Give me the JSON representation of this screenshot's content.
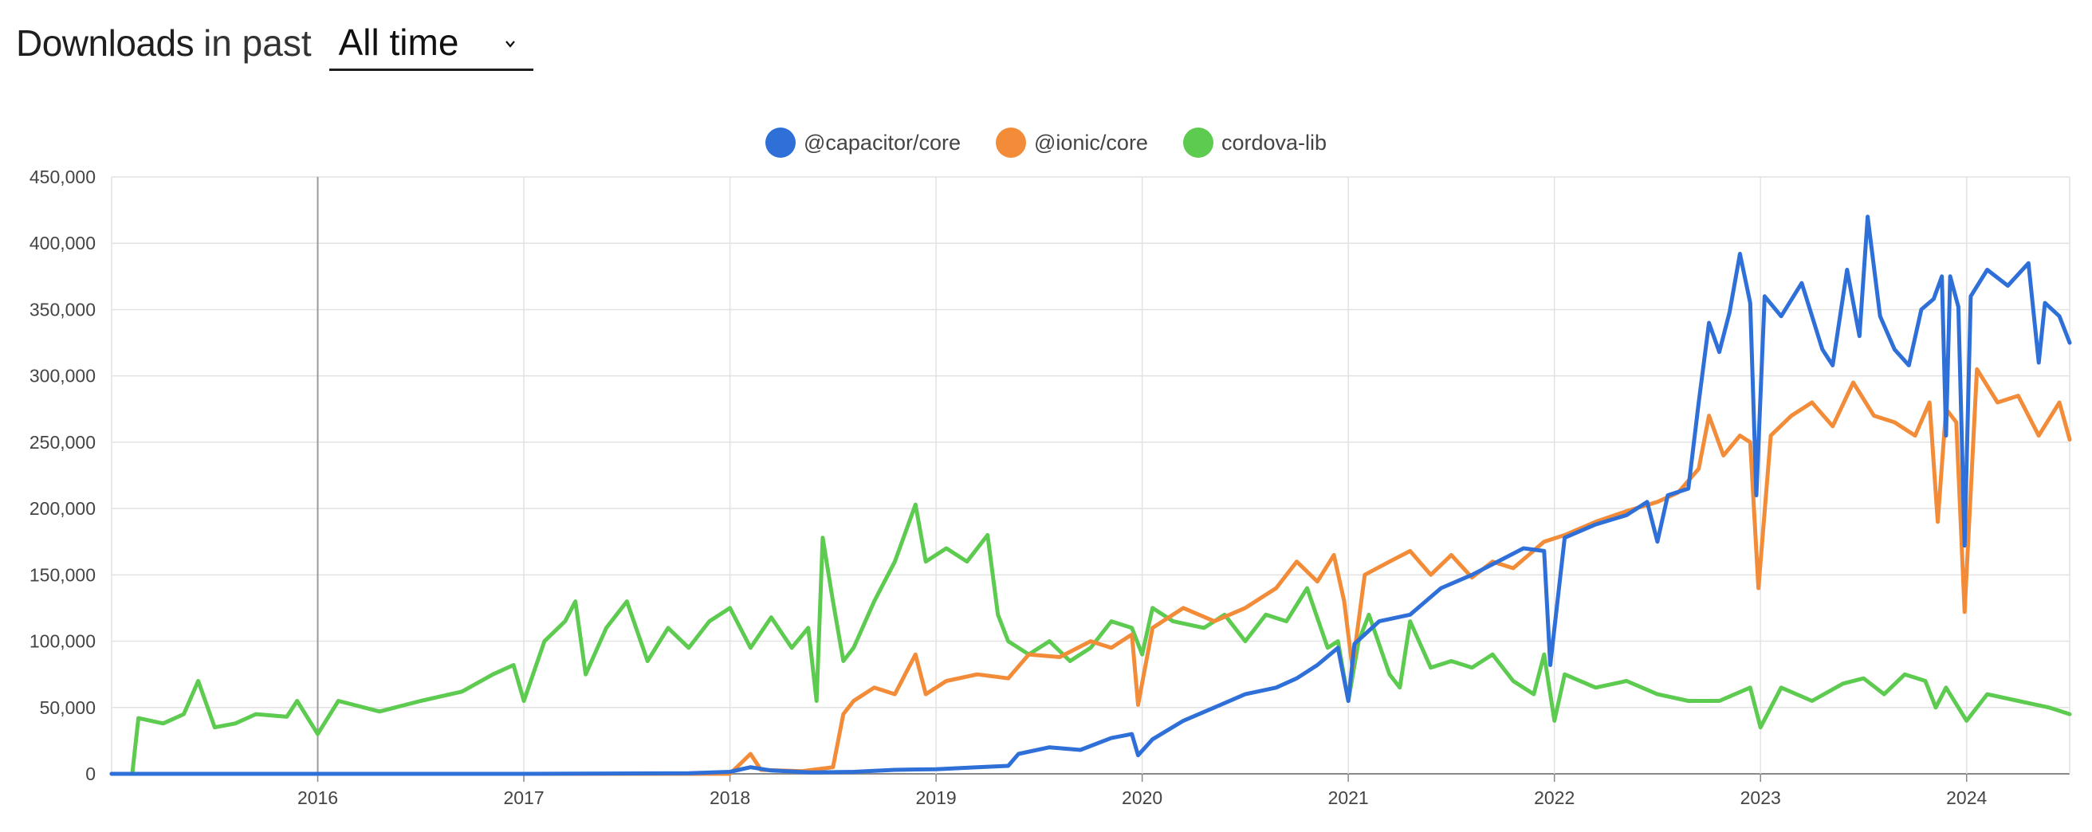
{
  "header": {
    "title_strong": "Downloads",
    "title_light": "in past",
    "range_select": {
      "value": "All time",
      "options": [
        "All time"
      ]
    }
  },
  "colors": {
    "capacitor": "#2f6fd8",
    "ionic": "#f28c38",
    "cordova": "#5ccb4f",
    "grid": "#e2e2e2",
    "axis": "#888888"
  },
  "chart_data": {
    "type": "line",
    "title": "",
    "xlabel": "",
    "ylabel": "",
    "legend_position": "top-center",
    "grid": true,
    "x_range": [
      2015.0,
      2024.5
    ],
    "ylim": [
      0,
      450000
    ],
    "y_ticks": [
      0,
      50000,
      100000,
      150000,
      200000,
      250000,
      300000,
      350000,
      400000,
      450000
    ],
    "y_tick_labels": [
      "0",
      "50,000",
      "100,000",
      "150,000",
      "200,000",
      "250,000",
      "300,000",
      "350,000",
      "400,000",
      "450,000"
    ],
    "x_ticks": [
      2016,
      2017,
      2018,
      2019,
      2020,
      2021,
      2022,
      2023,
      2024
    ],
    "x_tick_labels": [
      "2016",
      "2017",
      "2018",
      "2019",
      "2020",
      "2021",
      "2022",
      "2023",
      "2024"
    ],
    "series": [
      {
        "name": "@capacitor/core",
        "color_key": "capacitor",
        "points": [
          [
            2015.0,
            0
          ],
          [
            2016.0,
            0
          ],
          [
            2017.0,
            0
          ],
          [
            2017.8,
            500
          ],
          [
            2018.0,
            1500
          ],
          [
            2018.1,
            5000
          ],
          [
            2018.2,
            2500
          ],
          [
            2018.4,
            1000
          ],
          [
            2018.6,
            1500
          ],
          [
            2018.8,
            3000
          ],
          [
            2019.0,
            3500
          ],
          [
            2019.2,
            5000
          ],
          [
            2019.35,
            6000
          ],
          [
            2019.4,
            15000
          ],
          [
            2019.55,
            20000
          ],
          [
            2019.7,
            18000
          ],
          [
            2019.85,
            27000
          ],
          [
            2019.95,
            30000
          ],
          [
            2019.98,
            14000
          ],
          [
            2020.05,
            26000
          ],
          [
            2020.2,
            40000
          ],
          [
            2020.35,
            50000
          ],
          [
            2020.5,
            60000
          ],
          [
            2020.65,
            65000
          ],
          [
            2020.75,
            72000
          ],
          [
            2020.85,
            82000
          ],
          [
            2020.95,
            95000
          ],
          [
            2021.0,
            55000
          ],
          [
            2021.03,
            98000
          ],
          [
            2021.15,
            115000
          ],
          [
            2021.3,
            120000
          ],
          [
            2021.45,
            140000
          ],
          [
            2021.6,
            150000
          ],
          [
            2021.75,
            162000
          ],
          [
            2021.85,
            170000
          ],
          [
            2021.95,
            168000
          ],
          [
            2021.98,
            82000
          ],
          [
            2022.05,
            178000
          ],
          [
            2022.2,
            188000
          ],
          [
            2022.35,
            195000
          ],
          [
            2022.45,
            205000
          ],
          [
            2022.5,
            175000
          ],
          [
            2022.55,
            210000
          ],
          [
            2022.65,
            215000
          ],
          [
            2022.7,
            280000
          ],
          [
            2022.75,
            340000
          ],
          [
            2022.8,
            318000
          ],
          [
            2022.85,
            348000
          ],
          [
            2022.9,
            392000
          ],
          [
            2022.95,
            355000
          ],
          [
            2022.98,
            210000
          ],
          [
            2023.02,
            360000
          ],
          [
            2023.1,
            345000
          ],
          [
            2023.2,
            370000
          ],
          [
            2023.3,
            320000
          ],
          [
            2023.35,
            308000
          ],
          [
            2023.42,
            380000
          ],
          [
            2023.48,
            330000
          ],
          [
            2023.52,
            420000
          ],
          [
            2023.58,
            345000
          ],
          [
            2023.65,
            320000
          ],
          [
            2023.72,
            308000
          ],
          [
            2023.78,
            350000
          ],
          [
            2023.84,
            358000
          ],
          [
            2023.88,
            375000
          ],
          [
            2023.9,
            255000
          ],
          [
            2023.92,
            375000
          ],
          [
            2023.96,
            352000
          ],
          [
            2023.99,
            172000
          ],
          [
            2024.02,
            360000
          ],
          [
            2024.1,
            380000
          ],
          [
            2024.2,
            368000
          ],
          [
            2024.3,
            385000
          ],
          [
            2024.35,
            310000
          ],
          [
            2024.38,
            355000
          ],
          [
            2024.45,
            345000
          ],
          [
            2024.5,
            325000
          ]
        ]
      },
      {
        "name": "@ionic/core",
        "color_key": "ionic",
        "points": [
          [
            2015.0,
            0
          ],
          [
            2017.0,
            0
          ],
          [
            2018.0,
            0
          ],
          [
            2018.1,
            15000
          ],
          [
            2018.15,
            3000
          ],
          [
            2018.35,
            2000
          ],
          [
            2018.5,
            5000
          ],
          [
            2018.55,
            45000
          ],
          [
            2018.6,
            55000
          ],
          [
            2018.7,
            65000
          ],
          [
            2018.8,
            60000
          ],
          [
            2018.9,
            90000
          ],
          [
            2018.95,
            60000
          ],
          [
            2019.05,
            70000
          ],
          [
            2019.2,
            75000
          ],
          [
            2019.35,
            72000
          ],
          [
            2019.45,
            90000
          ],
          [
            2019.6,
            88000
          ],
          [
            2019.75,
            100000
          ],
          [
            2019.85,
            95000
          ],
          [
            2019.95,
            105000
          ],
          [
            2019.98,
            52000
          ],
          [
            2020.05,
            110000
          ],
          [
            2020.2,
            125000
          ],
          [
            2020.35,
            115000
          ],
          [
            2020.5,
            125000
          ],
          [
            2020.65,
            140000
          ],
          [
            2020.75,
            160000
          ],
          [
            2020.85,
            145000
          ],
          [
            2020.93,
            165000
          ],
          [
            2020.98,
            130000
          ],
          [
            2021.02,
            80000
          ],
          [
            2021.08,
            150000
          ],
          [
            2021.2,
            160000
          ],
          [
            2021.3,
            168000
          ],
          [
            2021.4,
            150000
          ],
          [
            2021.5,
            165000
          ],
          [
            2021.6,
            148000
          ],
          [
            2021.7,
            160000
          ],
          [
            2021.8,
            155000
          ],
          [
            2021.95,
            175000
          ],
          [
            2022.05,
            180000
          ],
          [
            2022.2,
            190000
          ],
          [
            2022.35,
            198000
          ],
          [
            2022.5,
            205000
          ],
          [
            2022.6,
            212000
          ],
          [
            2022.7,
            230000
          ],
          [
            2022.75,
            270000
          ],
          [
            2022.82,
            240000
          ],
          [
            2022.9,
            255000
          ],
          [
            2022.95,
            250000
          ],
          [
            2022.99,
            140000
          ],
          [
            2023.05,
            255000
          ],
          [
            2023.15,
            270000
          ],
          [
            2023.25,
            280000
          ],
          [
            2023.35,
            262000
          ],
          [
            2023.45,
            295000
          ],
          [
            2023.55,
            270000
          ],
          [
            2023.65,
            265000
          ],
          [
            2023.75,
            255000
          ],
          [
            2023.82,
            280000
          ],
          [
            2023.86,
            190000
          ],
          [
            2023.9,
            275000
          ],
          [
            2023.95,
            265000
          ],
          [
            2023.99,
            122000
          ],
          [
            2024.05,
            305000
          ],
          [
            2024.15,
            280000
          ],
          [
            2024.25,
            285000
          ],
          [
            2024.35,
            255000
          ],
          [
            2024.45,
            280000
          ],
          [
            2024.5,
            252000
          ]
        ]
      },
      {
        "name": "cordova-lib",
        "color_key": "cordova",
        "points": [
          [
            2015.0,
            0
          ],
          [
            2015.1,
            0
          ],
          [
            2015.13,
            42000
          ],
          [
            2015.25,
            38000
          ],
          [
            2015.35,
            45000
          ],
          [
            2015.42,
            70000
          ],
          [
            2015.5,
            35000
          ],
          [
            2015.6,
            38000
          ],
          [
            2015.7,
            45000
          ],
          [
            2015.85,
            43000
          ],
          [
            2015.9,
            55000
          ],
          [
            2016.0,
            30000
          ],
          [
            2016.1,
            55000
          ],
          [
            2016.3,
            47000
          ],
          [
            2016.5,
            55000
          ],
          [
            2016.7,
            62000
          ],
          [
            2016.85,
            75000
          ],
          [
            2016.95,
            82000
          ],
          [
            2017.0,
            55000
          ],
          [
            2017.1,
            100000
          ],
          [
            2017.2,
            115000
          ],
          [
            2017.25,
            130000
          ],
          [
            2017.3,
            75000
          ],
          [
            2017.4,
            110000
          ],
          [
            2017.5,
            130000
          ],
          [
            2017.6,
            85000
          ],
          [
            2017.7,
            110000
          ],
          [
            2017.8,
            95000
          ],
          [
            2017.9,
            115000
          ],
          [
            2018.0,
            125000
          ],
          [
            2018.1,
            95000
          ],
          [
            2018.2,
            118000
          ],
          [
            2018.3,
            95000
          ],
          [
            2018.38,
            110000
          ],
          [
            2018.42,
            55000
          ],
          [
            2018.45,
            178000
          ],
          [
            2018.5,
            130000
          ],
          [
            2018.55,
            85000
          ],
          [
            2018.6,
            95000
          ],
          [
            2018.7,
            130000
          ],
          [
            2018.8,
            160000
          ],
          [
            2018.9,
            203000
          ],
          [
            2018.95,
            160000
          ],
          [
            2019.05,
            170000
          ],
          [
            2019.15,
            160000
          ],
          [
            2019.25,
            180000
          ],
          [
            2019.3,
            120000
          ],
          [
            2019.35,
            100000
          ],
          [
            2019.45,
            90000
          ],
          [
            2019.55,
            100000
          ],
          [
            2019.65,
            85000
          ],
          [
            2019.75,
            95000
          ],
          [
            2019.85,
            115000
          ],
          [
            2019.95,
            110000
          ],
          [
            2020.0,
            90000
          ],
          [
            2020.05,
            125000
          ],
          [
            2020.15,
            115000
          ],
          [
            2020.3,
            110000
          ],
          [
            2020.4,
            120000
          ],
          [
            2020.5,
            100000
          ],
          [
            2020.6,
            120000
          ],
          [
            2020.7,
            115000
          ],
          [
            2020.8,
            140000
          ],
          [
            2020.9,
            95000
          ],
          [
            2020.95,
            100000
          ],
          [
            2021.0,
            55000
          ],
          [
            2021.05,
            100000
          ],
          [
            2021.1,
            120000
          ],
          [
            2021.2,
            75000
          ],
          [
            2021.25,
            65000
          ],
          [
            2021.3,
            115000
          ],
          [
            2021.4,
            80000
          ],
          [
            2021.5,
            85000
          ],
          [
            2021.6,
            80000
          ],
          [
            2021.7,
            90000
          ],
          [
            2021.8,
            70000
          ],
          [
            2021.9,
            60000
          ],
          [
            2021.95,
            90000
          ],
          [
            2022.0,
            40000
          ],
          [
            2022.05,
            75000
          ],
          [
            2022.2,
            65000
          ],
          [
            2022.35,
            70000
          ],
          [
            2022.5,
            60000
          ],
          [
            2022.65,
            55000
          ],
          [
            2022.8,
            55000
          ],
          [
            2022.95,
            65000
          ],
          [
            2023.0,
            35000
          ],
          [
            2023.1,
            65000
          ],
          [
            2023.25,
            55000
          ],
          [
            2023.4,
            68000
          ],
          [
            2023.5,
            72000
          ],
          [
            2023.6,
            60000
          ],
          [
            2023.7,
            75000
          ],
          [
            2023.8,
            70000
          ],
          [
            2023.85,
            50000
          ],
          [
            2023.9,
            65000
          ],
          [
            2024.0,
            40000
          ],
          [
            2024.1,
            60000
          ],
          [
            2024.25,
            55000
          ],
          [
            2024.4,
            50000
          ],
          [
            2024.5,
            45000
          ]
        ]
      }
    ]
  }
}
